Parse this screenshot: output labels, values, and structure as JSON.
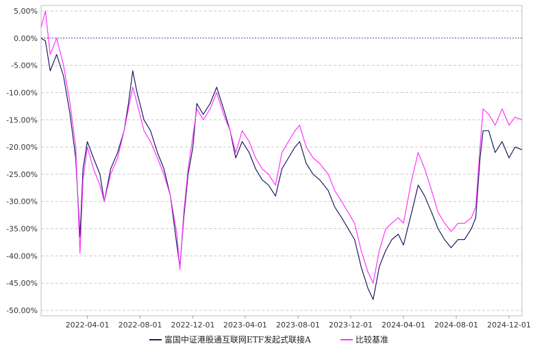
{
  "chart_data": {
    "type": "line",
    "ylabel_format": "percent",
    "ylim": [
      -51,
      6
    ],
    "y_ticks": [
      5,
      0,
      -5,
      -10,
      -15,
      -20,
      -25,
      -30,
      -35,
      -40,
      -45,
      -50
    ],
    "y_tick_labels": [
      "5.00%",
      "0.00%",
      "-5.00%",
      "-10.00%",
      "-15.00%",
      "-20.00%",
      "-25.00%",
      "-30.00%",
      "-35.00%",
      "-40.00%",
      "-45.00%",
      "-50.00%"
    ],
    "x_range": [
      "2021-12-15",
      "2024-12-31"
    ],
    "x_ticks": [
      "2022-04-01",
      "2022-08-01",
      "2022-12-01",
      "2023-04-01",
      "2023-08-01",
      "2023-12-01",
      "2024-04-01",
      "2024-08-01",
      "2024-12-01"
    ],
    "grid": true,
    "legend_position": "bottom",
    "zero_line_color": "#3d3d8f",
    "series": [
      {
        "name": "富国中证港股通互联网ETF发起式联接A",
        "color": "#1a1a5e",
        "points": [
          [
            "2021-12-15",
            0.0
          ],
          [
            "2021-12-25",
            -0.5
          ],
          [
            "2022-01-05",
            -6.0
          ],
          [
            "2022-01-20",
            -3.0
          ],
          [
            "2022-02-05",
            -7.0
          ],
          [
            "2022-02-20",
            -14.0
          ],
          [
            "2022-03-05",
            -22.0
          ],
          [
            "2022-03-15",
            -36.5
          ],
          [
            "2022-03-22",
            -24.0
          ],
          [
            "2022-04-01",
            -19.0
          ],
          [
            "2022-04-15",
            -22.0
          ],
          [
            "2022-04-30",
            -25.0
          ],
          [
            "2022-05-10",
            -30.0
          ],
          [
            "2022-05-25",
            -24.0
          ],
          [
            "2022-06-10",
            -21.0
          ],
          [
            "2022-06-25",
            -17.0
          ],
          [
            "2022-07-05",
            -12.0
          ],
          [
            "2022-07-15",
            -6.0
          ],
          [
            "2022-07-25",
            -10.0
          ],
          [
            "2022-08-10",
            -15.0
          ],
          [
            "2022-08-25",
            -17.0
          ],
          [
            "2022-09-10",
            -21.0
          ],
          [
            "2022-09-25",
            -24.0
          ],
          [
            "2022-10-10",
            -29.0
          ],
          [
            "2022-10-25",
            -38.0
          ],
          [
            "2022-11-01",
            -42.0
          ],
          [
            "2022-11-10",
            -33.0
          ],
          [
            "2022-11-20",
            -25.0
          ],
          [
            "2022-12-01",
            -20.0
          ],
          [
            "2022-12-10",
            -12.0
          ],
          [
            "2022-12-25",
            -14.0
          ],
          [
            "2023-01-10",
            -12.0
          ],
          [
            "2023-01-25",
            -9.0
          ],
          [
            "2023-02-10",
            -13.0
          ],
          [
            "2023-02-25",
            -17.0
          ],
          [
            "2023-03-10",
            -22.0
          ],
          [
            "2023-03-25",
            -19.0
          ],
          [
            "2023-04-10",
            -21.0
          ],
          [
            "2023-04-25",
            -24.0
          ],
          [
            "2023-05-10",
            -26.0
          ],
          [
            "2023-05-25",
            -27.0
          ],
          [
            "2023-06-10",
            -29.0
          ],
          [
            "2023-06-25",
            -24.0
          ],
          [
            "2023-07-10",
            -22.0
          ],
          [
            "2023-07-25",
            -20.0
          ],
          [
            "2023-08-05",
            -19.0
          ],
          [
            "2023-08-20",
            -23.0
          ],
          [
            "2023-09-05",
            -25.0
          ],
          [
            "2023-09-20",
            -26.0
          ],
          [
            "2023-10-10",
            -28.0
          ],
          [
            "2023-10-25",
            -31.0
          ],
          [
            "2023-11-10",
            -33.0
          ],
          [
            "2023-11-25",
            -35.0
          ],
          [
            "2023-12-10",
            -37.0
          ],
          [
            "2023-12-25",
            -42.0
          ],
          [
            "2024-01-10",
            -46.0
          ],
          [
            "2024-01-22",
            -48.0
          ],
          [
            "2024-02-05",
            -42.0
          ],
          [
            "2024-02-20",
            -39.0
          ],
          [
            "2024-03-05",
            -37.0
          ],
          [
            "2024-03-20",
            -36.0
          ],
          [
            "2024-04-01",
            -38.0
          ],
          [
            "2024-04-20",
            -32.0
          ],
          [
            "2024-05-05",
            -27.0
          ],
          [
            "2024-05-20",
            -29.0
          ],
          [
            "2024-06-05",
            -32.0
          ],
          [
            "2024-06-20",
            -35.0
          ],
          [
            "2024-07-05",
            -37.0
          ],
          [
            "2024-07-20",
            -38.5
          ],
          [
            "2024-08-05",
            -37.0
          ],
          [
            "2024-08-20",
            -37.0
          ],
          [
            "2024-09-05",
            -35.0
          ],
          [
            "2024-09-15",
            -33.0
          ],
          [
            "2024-09-25",
            -22.0
          ],
          [
            "2024-10-02",
            -17.0
          ],
          [
            "2024-10-15",
            -17.0
          ],
          [
            "2024-10-30",
            -21.0
          ],
          [
            "2024-11-15",
            -19.0
          ],
          [
            "2024-12-01",
            -22.0
          ],
          [
            "2024-12-15",
            -20.0
          ],
          [
            "2024-12-31",
            -20.5
          ]
        ]
      },
      {
        "name": "比较基准",
        "color": "#ff33ff",
        "points": [
          [
            "2021-12-15",
            2.0
          ],
          [
            "2021-12-25",
            5.0
          ],
          [
            "2022-01-05",
            -3.0
          ],
          [
            "2022-01-20",
            0.0
          ],
          [
            "2022-02-05",
            -5.0
          ],
          [
            "2022-02-20",
            -12.0
          ],
          [
            "2022-03-05",
            -20.0
          ],
          [
            "2022-03-15",
            -39.5
          ],
          [
            "2022-03-22",
            -26.0
          ],
          [
            "2022-04-01",
            -20.0
          ],
          [
            "2022-04-15",
            -24.0
          ],
          [
            "2022-04-30",
            -27.0
          ],
          [
            "2022-05-10",
            -30.0
          ],
          [
            "2022-05-25",
            -25.0
          ],
          [
            "2022-06-10",
            -22.0
          ],
          [
            "2022-06-25",
            -17.0
          ],
          [
            "2022-07-05",
            -13.0
          ],
          [
            "2022-07-15",
            -9.0
          ],
          [
            "2022-07-25",
            -12.0
          ],
          [
            "2022-08-10",
            -17.0
          ],
          [
            "2022-08-25",
            -19.0
          ],
          [
            "2022-09-10",
            -22.0
          ],
          [
            "2022-09-25",
            -25.0
          ],
          [
            "2022-10-10",
            -29.0
          ],
          [
            "2022-10-25",
            -36.0
          ],
          [
            "2022-11-01",
            -42.5
          ],
          [
            "2022-11-10",
            -32.0
          ],
          [
            "2022-11-20",
            -24.0
          ],
          [
            "2022-12-01",
            -18.0
          ],
          [
            "2022-12-10",
            -13.0
          ],
          [
            "2022-12-25",
            -15.0
          ],
          [
            "2023-01-10",
            -13.0
          ],
          [
            "2023-01-25",
            -10.0
          ],
          [
            "2023-02-10",
            -14.0
          ],
          [
            "2023-02-25",
            -17.0
          ],
          [
            "2023-03-10",
            -21.0
          ],
          [
            "2023-03-25",
            -17.0
          ],
          [
            "2023-04-10",
            -19.0
          ],
          [
            "2023-04-25",
            -22.0
          ],
          [
            "2023-05-10",
            -24.0
          ],
          [
            "2023-05-25",
            -25.0
          ],
          [
            "2023-06-10",
            -27.0
          ],
          [
            "2023-06-25",
            -21.0
          ],
          [
            "2023-07-10",
            -19.0
          ],
          [
            "2023-07-25",
            -17.0
          ],
          [
            "2023-08-05",
            -16.0
          ],
          [
            "2023-08-20",
            -20.0
          ],
          [
            "2023-09-05",
            -22.0
          ],
          [
            "2023-09-20",
            -23.0
          ],
          [
            "2023-10-10",
            -25.0
          ],
          [
            "2023-10-25",
            -28.0
          ],
          [
            "2023-11-10",
            -30.0
          ],
          [
            "2023-11-25",
            -32.0
          ],
          [
            "2023-12-10",
            -34.0
          ],
          [
            "2023-12-25",
            -39.0
          ],
          [
            "2024-01-10",
            -43.0
          ],
          [
            "2024-01-22",
            -45.0
          ],
          [
            "2024-02-05",
            -39.0
          ],
          [
            "2024-02-20",
            -35.0
          ],
          [
            "2024-03-05",
            -34.0
          ],
          [
            "2024-03-20",
            -33.0
          ],
          [
            "2024-04-01",
            -34.0
          ],
          [
            "2024-04-20",
            -26.0
          ],
          [
            "2024-05-05",
            -21.0
          ],
          [
            "2024-05-20",
            -24.0
          ],
          [
            "2024-06-05",
            -28.0
          ],
          [
            "2024-06-20",
            -32.0
          ],
          [
            "2024-07-05",
            -34.0
          ],
          [
            "2024-07-20",
            -35.5
          ],
          [
            "2024-08-05",
            -34.0
          ],
          [
            "2024-08-20",
            -34.0
          ],
          [
            "2024-09-05",
            -33.0
          ],
          [
            "2024-09-15",
            -31.0
          ],
          [
            "2024-09-25",
            -20.0
          ],
          [
            "2024-10-02",
            -13.0
          ],
          [
            "2024-10-15",
            -14.0
          ],
          [
            "2024-10-30",
            -16.0
          ],
          [
            "2024-11-15",
            -13.0
          ],
          [
            "2024-12-01",
            -16.0
          ],
          [
            "2024-12-15",
            -14.5
          ],
          [
            "2024-12-31",
            -15.0
          ]
        ]
      }
    ]
  }
}
